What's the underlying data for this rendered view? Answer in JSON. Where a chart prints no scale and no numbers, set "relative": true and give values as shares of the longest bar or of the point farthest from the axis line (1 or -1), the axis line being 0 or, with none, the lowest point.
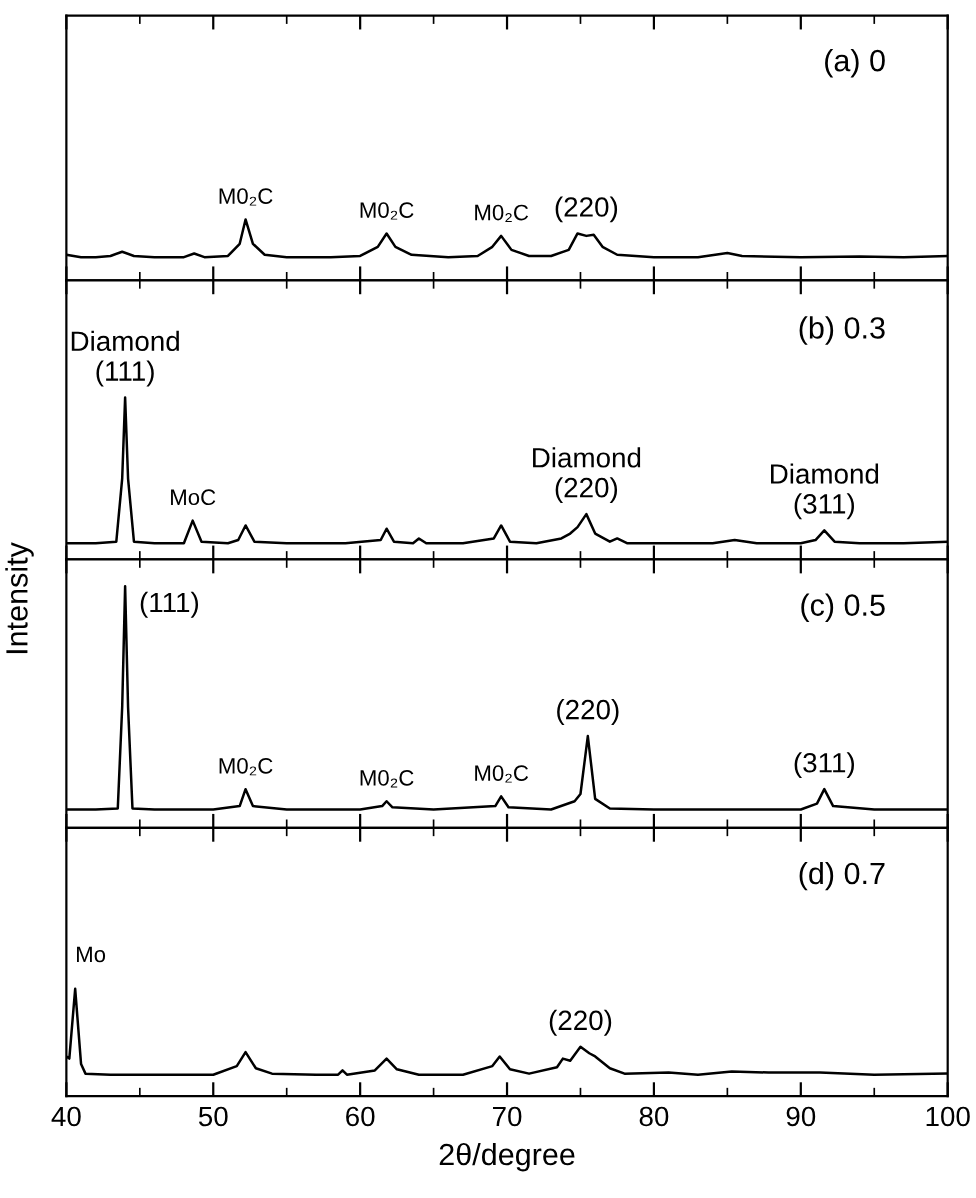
{
  "chart_data": [
    {
      "type": "line",
      "title": "(a) 0",
      "relative": true,
      "tick_labels": false,
      "xlim": [
        40,
        100
      ],
      "xticks": [
        40,
        50,
        60,
        70,
        80,
        90,
        100,
        {
          "value": 45,
          "label": null
        },
        {
          "value": 55,
          "label": null
        },
        {
          "value": 65,
          "label": null
        },
        {
          "value": 75,
          "label": null
        },
        {
          "value": 85,
          "label": null
        },
        {
          "value": 95,
          "label": null
        }
      ],
      "series": [
        {
          "color": "#000000",
          "x": [
            40,
            41,
            42,
            43,
            43.8,
            44.6,
            46,
            48,
            48.7,
            49.4,
            51,
            51.8,
            52.2,
            52.7,
            53.5,
            55,
            58,
            60,
            61.2,
            61.8,
            62.4,
            63.5,
            66,
            68,
            69.0,
            69.6,
            70.3,
            71.5,
            73,
            74.2,
            74.8,
            75.4,
            75.9,
            76.5,
            77.5,
            80,
            83,
            85,
            86,
            90,
            94,
            97,
            100
          ],
          "values": [
            0.42,
            0.38,
            0.38,
            0.4,
            0.47,
            0.4,
            0.38,
            0.38,
            0.44,
            0.38,
            0.4,
            0.6,
            1.0,
            0.6,
            0.42,
            0.38,
            0.38,
            0.4,
            0.55,
            0.77,
            0.55,
            0.42,
            0.38,
            0.4,
            0.55,
            0.73,
            0.5,
            0.4,
            0.4,
            0.5,
            0.77,
            0.73,
            0.75,
            0.55,
            0.42,
            0.38,
            0.38,
            0.45,
            0.4,
            0.38,
            0.39,
            0.38,
            0.4
          ]
        }
      ],
      "annotations": [
        {
          "text": "M0₂C",
          "x": 52.2,
          "y": 1.0
        },
        {
          "text": "M0₂C",
          "x": 61.8,
          "y": 0.77
        },
        {
          "text": "M0₂C",
          "x": 69.6,
          "y": 0.73
        },
        {
          "text": "(220)",
          "x": 75.4,
          "y": 0.77
        }
      ]
    },
    {
      "type": "line",
      "title": "(b) 0.3",
      "relative": true,
      "tick_labels": false,
      "xlim": [
        40,
        100
      ],
      "ylabel": "Intensity",
      "xticks": [
        40,
        50,
        60,
        70,
        80,
        90,
        100,
        {
          "value": 45,
          "label": null
        },
        {
          "value": 55,
          "label": null
        },
        {
          "value": 65,
          "label": null
        },
        {
          "value": 75,
          "label": null
        },
        {
          "value": 85,
          "label": null
        },
        {
          "value": 95,
          "label": null
        }
      ],
      "series": [
        {
          "color": "#000000",
          "x": [
            40,
            42,
            43.4,
            43.8,
            44.0,
            44.2,
            44.6,
            46,
            48,
            48.6,
            49.2,
            51,
            51.7,
            52.2,
            52.8,
            55,
            59,
            61.4,
            61.8,
            62.3,
            63.6,
            64.0,
            64.5,
            67,
            69.1,
            69.6,
            70.2,
            72,
            73.7,
            74.3,
            74.8,
            75.4,
            76.0,
            77.0,
            77.5,
            78.2,
            80,
            84,
            85.5,
            87,
            90,
            91.0,
            91.6,
            92.3,
            94,
            97,
            100
          ],
          "values": [
            0.1,
            0.1,
            0.11,
            0.5,
            1.0,
            0.5,
            0.11,
            0.1,
            0.1,
            0.24,
            0.11,
            0.1,
            0.12,
            0.21,
            0.11,
            0.1,
            0.1,
            0.12,
            0.19,
            0.11,
            0.1,
            0.13,
            0.1,
            0.1,
            0.13,
            0.21,
            0.11,
            0.1,
            0.13,
            0.16,
            0.2,
            0.28,
            0.16,
            0.11,
            0.13,
            0.1,
            0.1,
            0.1,
            0.12,
            0.1,
            0.1,
            0.12,
            0.18,
            0.11,
            0.1,
            0.1,
            0.11
          ]
        }
      ],
      "annotations": [
        {
          "text": "Diamond\n(111)",
          "x": 44.0,
          "y": 1.0
        },
        {
          "text": "MoC",
          "x": 48.6,
          "y": 0.24
        },
        {
          "text": "Diamond\n(220)",
          "x": 75.4,
          "y": 0.28
        },
        {
          "text": "Diamond\n(311)",
          "x": 91.6,
          "y": 0.18
        }
      ]
    },
    {
      "type": "line",
      "title": "(c) 0.5",
      "relative": true,
      "tick_labels": false,
      "xlim": [
        40,
        100
      ],
      "xticks": [
        40,
        50,
        60,
        70,
        80,
        90,
        100,
        {
          "value": 45,
          "label": null
        },
        {
          "value": 55,
          "label": null
        },
        {
          "value": 65,
          "label": null
        },
        {
          "value": 75,
          "label": null
        },
        {
          "value": 85,
          "label": null
        },
        {
          "value": 95,
          "label": null
        }
      ],
      "series": [
        {
          "color": "#000000",
          "x": [
            40,
            42,
            43.5,
            43.8,
            44.0,
            44.2,
            44.5,
            46,
            50,
            51.8,
            52.2,
            52.7,
            55,
            60,
            61.5,
            61.8,
            62.2,
            65,
            69.2,
            69.6,
            70.1,
            73,
            74.6,
            75.0,
            75.5,
            76.0,
            77,
            80,
            85,
            90,
            91.1,
            91.6,
            92.2,
            95,
            100
          ],
          "values": [
            0.076,
            0.076,
            0.08,
            0.5,
            1.0,
            0.5,
            0.08,
            0.076,
            0.076,
            0.09,
            0.16,
            0.09,
            0.076,
            0.076,
            0.09,
            0.11,
            0.085,
            0.076,
            0.09,
            0.13,
            0.085,
            0.076,
            0.11,
            0.14,
            0.38,
            0.12,
            0.08,
            0.076,
            0.076,
            0.076,
            0.1,
            0.16,
            0.09,
            0.076,
            0.076
          ]
        }
      ],
      "annotations": [
        {
          "text": "(111)",
          "x": 44.0,
          "y": 1.0
        },
        {
          "text": "M0₂C",
          "x": 52.2,
          "y": 0.16
        },
        {
          "text": "M0₂C",
          "x": 61.8,
          "y": 0.11
        },
        {
          "text": "M0₂C",
          "x": 69.6,
          "y": 0.13
        },
        {
          "text": "(220)",
          "x": 75.5,
          "y": 0.38
        },
        {
          "text": "(311)",
          "x": 91.6,
          "y": 0.16
        }
      ]
    },
    {
      "type": "line",
      "title": "(d) 0.7",
      "relative": true,
      "tick_labels": "x",
      "xlim": [
        40,
        100
      ],
      "xlabel": "2θ/degree",
      "xticks": [
        40,
        50,
        60,
        70,
        80,
        90,
        100,
        {
          "value": 45,
          "label": null
        },
        {
          "value": 55,
          "label": null
        },
        {
          "value": 65,
          "label": null
        },
        {
          "value": 75,
          "label": null
        },
        {
          "value": 85,
          "label": null
        },
        {
          "value": 95,
          "label": null
        }
      ],
      "series": [
        {
          "color": "#000000",
          "x": [
            40,
            40.2,
            40.6,
            41.0,
            41.3,
            43,
            47,
            50,
            51.6,
            52.2,
            52.9,
            54,
            57,
            58.5,
            58.8,
            59.1,
            61,
            61.8,
            62.5,
            64,
            67,
            69.0,
            69.5,
            70.2,
            71.5,
            73.4,
            73.8,
            74.3,
            75.0,
            75.6,
            76.0,
            77.0,
            78,
            81,
            83,
            85.3,
            87.8,
            91.3,
            95,
            100
          ],
          "values": [
            0.37,
            0.35,
            1.0,
            0.3,
            0.21,
            0.2,
            0.2,
            0.2,
            0.28,
            0.41,
            0.26,
            0.21,
            0.2,
            0.2,
            0.24,
            0.2,
            0.24,
            0.35,
            0.25,
            0.2,
            0.2,
            0.28,
            0.37,
            0.25,
            0.21,
            0.27,
            0.35,
            0.33,
            0.46,
            0.4,
            0.37,
            0.26,
            0.21,
            0.22,
            0.2,
            0.23,
            0.22,
            0.22,
            0.2,
            0.21
          ]
        }
      ],
      "annotations": [
        {
          "text": "Mo",
          "x": 40.6,
          "y": 1.0
        },
        {
          "text": "(220)",
          "x": 75.0,
          "y": 0.46
        }
      ]
    }
  ]
}
